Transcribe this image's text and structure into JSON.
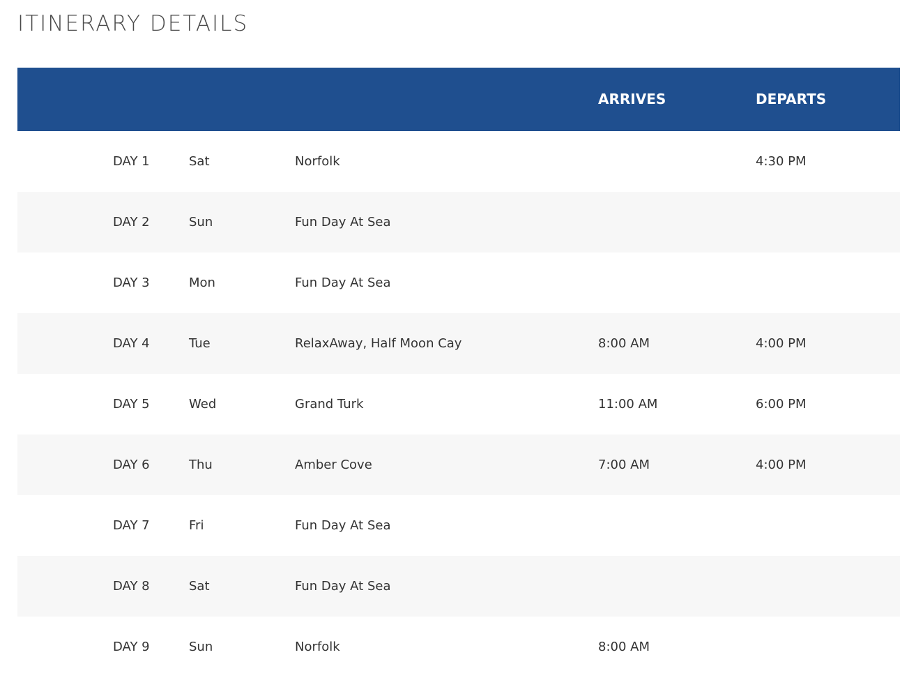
{
  "page": {
    "title": "ITINERARY DETAILS"
  },
  "table": {
    "headers": {
      "arrives": "ARRIVES",
      "departs": "DEPARTS"
    },
    "rows": [
      {
        "day": "DAY 1",
        "dow": "Sat",
        "port": "Norfolk",
        "arrives": "",
        "departs": "4:30 PM"
      },
      {
        "day": "DAY 2",
        "dow": "Sun",
        "port": "Fun Day At Sea",
        "arrives": "",
        "departs": ""
      },
      {
        "day": "DAY 3",
        "dow": "Mon",
        "port": "Fun Day At Sea",
        "arrives": "",
        "departs": ""
      },
      {
        "day": "DAY 4",
        "dow": "Tue",
        "port": "RelaxAway, Half Moon Cay",
        "arrives": "8:00 AM",
        "departs": "4:00 PM"
      },
      {
        "day": "DAY 5",
        "dow": "Wed",
        "port": "Grand Turk",
        "arrives": "11:00 AM",
        "departs": "6:00 PM"
      },
      {
        "day": "DAY 6",
        "dow": "Thu",
        "port": "Amber Cove",
        "arrives": "7:00 AM",
        "departs": "4:00 PM"
      },
      {
        "day": "DAY 7",
        "dow": "Fri",
        "port": "Fun Day At Sea",
        "arrives": "",
        "departs": ""
      },
      {
        "day": "DAY 8",
        "dow": "Sat",
        "port": "Fun Day At Sea",
        "arrives": "",
        "departs": ""
      },
      {
        "day": "DAY 9",
        "dow": "Sun",
        "port": "Norfolk",
        "arrives": "8:00 AM",
        "departs": ""
      }
    ]
  },
  "colors": {
    "header_bg": "#1f4f8f",
    "row_alt_bg": "#f7f7f7",
    "text": "#333333"
  }
}
